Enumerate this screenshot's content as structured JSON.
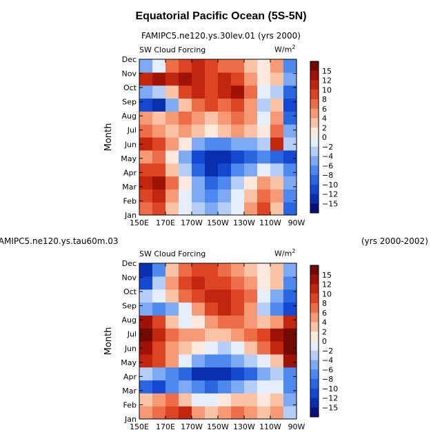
{
  "page_title": "Equatorial Pacific Ocean (5S-5N)",
  "chart_data": [
    {
      "type": "heatmap",
      "case_title": "FAMIPC5.ne120.ys.30lev.01 (yrs 2000)",
      "left_label": "SW Cloud Forcing",
      "units_label": "W/m",
      "units_sup": "2",
      "ylabel": "Month",
      "xlabel": "",
      "x_ticks": [
        "150E",
        "170E",
        "170W",
        "150W",
        "130W",
        "110W",
        "90W"
      ],
      "y_ticks": [
        "Jan",
        "Feb",
        "Mar",
        "Apr",
        "May",
        "Jun",
        "Jul",
        "Aug",
        "Sep",
        "Oct",
        "Nov",
        "Dec"
      ],
      "colorbar_levels": [
        "15",
        "12",
        "10",
        "8",
        "6",
        "4",
        "2",
        "0",
        "-2",
        "-4",
        "-6",
        "-8",
        "-10",
        "-12",
        "-15"
      ],
      "approx_values": [
        [
          6,
          8,
          2,
          -2,
          -4,
          -6,
          -4,
          -2,
          4,
          8,
          2,
          -10
        ],
        [
          8,
          10,
          4,
          -2,
          -6,
          -8,
          -6,
          -2,
          2,
          6,
          4,
          -8
        ],
        [
          10,
          12,
          6,
          0,
          -6,
          -10,
          -8,
          -4,
          0,
          4,
          2,
          -6
        ],
        [
          8,
          8,
          2,
          -4,
          -10,
          -14,
          -12,
          -8,
          -6,
          -2,
          -4,
          -8
        ],
        [
          4,
          6,
          0,
          -6,
          -12,
          -15,
          -14,
          -12,
          -10,
          -8,
          -10,
          -12
        ],
        [
          10,
          8,
          4,
          0,
          -6,
          -8,
          -8,
          -6,
          -6,
          -4,
          10,
          -4
        ],
        [
          6,
          4,
          2,
          4,
          2,
          0,
          2,
          4,
          2,
          0,
          6,
          -6
        ],
        [
          4,
          2,
          4,
          6,
          4,
          2,
          4,
          6,
          4,
          -2,
          4,
          -10
        ],
        [
          -12,
          -15,
          -6,
          2,
          6,
          8,
          6,
          8,
          4,
          -4,
          2,
          -12
        ],
        [
          -6,
          -4,
          2,
          8,
          10,
          8,
          10,
          12,
          6,
          -2,
          -4,
          -10
        ],
        [
          10,
          12,
          10,
          12,
          10,
          8,
          10,
          8,
          4,
          0,
          2,
          -6
        ],
        [
          -6,
          -2,
          6,
          8,
          10,
          8,
          6,
          6,
          2,
          0,
          4,
          -8
        ]
      ]
    },
    {
      "type": "heatmap",
      "case_title": "FAMIPC5.ne120.ys.tau60m.03",
      "case_years": "(yrs 2000-2002)",
      "left_label": "SW Cloud Forcing",
      "units_label": "W/m",
      "units_sup": "2",
      "ylabel": "Month",
      "xlabel": "",
      "x_ticks": [
        "150E",
        "170E",
        "170W",
        "150W",
        "130W",
        "110W",
        "90W"
      ],
      "y_ticks": [
        "Jan",
        "Feb",
        "Mar",
        "Apr",
        "May",
        "Jun",
        "Jul",
        "Aug",
        "Sep",
        "Oct",
        "Nov",
        "Dec"
      ],
      "colorbar_levels": [
        "15",
        "12",
        "10",
        "8",
        "6",
        "4",
        "2",
        "0",
        "-2",
        "-4",
        "-6",
        "-8",
        "-10",
        "-12",
        "-15"
      ],
      "approx_values": [
        [
          4,
          6,
          8,
          10,
          4,
          2,
          4,
          6,
          4,
          2,
          4,
          -4
        ],
        [
          2,
          4,
          6,
          2,
          -2,
          -2,
          0,
          2,
          2,
          0,
          2,
          -6
        ],
        [
          -10,
          -12,
          -8,
          -6,
          -8,
          -10,
          -8,
          -6,
          -4,
          -2,
          -2,
          -8
        ],
        [
          -4,
          -6,
          -8,
          -10,
          -14,
          -15,
          -14,
          -12,
          -10,
          -6,
          -4,
          -8
        ],
        [
          10,
          8,
          4,
          -2,
          -6,
          -8,
          -8,
          -6,
          -4,
          -2,
          2,
          12
        ],
        [
          12,
          8,
          4,
          2,
          0,
          -2,
          -4,
          -2,
          2,
          6,
          10,
          15
        ],
        [
          15,
          10,
          6,
          4,
          4,
          2,
          2,
          4,
          6,
          8,
          12,
          15
        ],
        [
          14,
          8,
          2,
          -2,
          0,
          4,
          6,
          6,
          4,
          2,
          4,
          10
        ],
        [
          -6,
          -8,
          -6,
          -2,
          4,
          8,
          10,
          8,
          4,
          -4,
          -8,
          -12
        ],
        [
          -4,
          -2,
          2,
          6,
          8,
          10,
          10,
          8,
          6,
          -2,
          -6,
          -10
        ],
        [
          -12,
          -4,
          4,
          8,
          10,
          8,
          8,
          6,
          4,
          0,
          2,
          -8
        ],
        [
          -15,
          -8,
          2,
          6,
          8,
          8,
          6,
          4,
          2,
          0,
          2,
          -6
        ]
      ]
    }
  ],
  "colors": {
    "palette": [
      "#08107a",
      "#0a2fae",
      "#1448d0",
      "#2a66e0",
      "#4c88ee",
      "#7eaaf4",
      "#b4cef8",
      "#e4eefc",
      "#fde8de",
      "#fbc3a5",
      "#f59a74",
      "#ec6d47",
      "#dc4424",
      "#c3260e",
      "#9e1306",
      "#700a03"
    ]
  }
}
